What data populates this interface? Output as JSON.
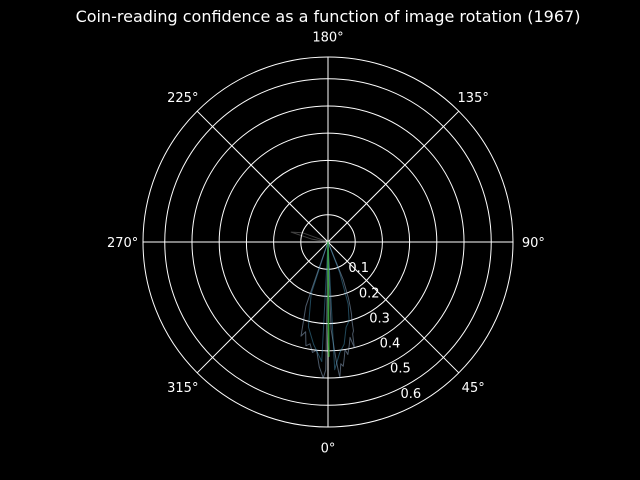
{
  "chart_data": {
    "type": "polar-line",
    "title": "Coin-reading confidence as a function of image rotation (1967)",
    "theta_zero_location": "S",
    "theta_direction": "counterclockwise",
    "angle_ticks": [
      "0°",
      "45°",
      "90°",
      "135°",
      "180°",
      "225°",
      "270°",
      "315°"
    ],
    "radial_ticks": [
      "0.1",
      "0.2",
      "0.3",
      "0.4",
      "0.5",
      "0.6"
    ],
    "rlim": [
      0,
      0.68
    ],
    "grid": true,
    "series": [
      {
        "color": "#a9c6e6",
        "opacity": 0.45,
        "points": [
          {
            "theta": 0,
            "r": 0.0
          },
          {
            "theta": 2,
            "r": 0.32
          },
          {
            "theta": 4,
            "r": 0.44
          },
          {
            "theta": 5,
            "r": 0.5
          },
          {
            "theta": 6,
            "r": 0.45
          },
          {
            "theta": 7,
            "r": 0.46
          },
          {
            "theta": 8,
            "r": 0.43
          },
          {
            "theta": 9,
            "r": 0.4
          },
          {
            "theta": 10,
            "r": 0.42
          },
          {
            "theta": 11,
            "r": 0.4
          },
          {
            "theta": 12,
            "r": 0.38
          },
          {
            "theta": 13,
            "r": 0.36
          },
          {
            "theta": 14,
            "r": 0.4
          },
          {
            "theta": 15,
            "r": 0.35
          },
          {
            "theta": 16,
            "r": 0.34
          },
          {
            "theta": 17,
            "r": 0.3
          },
          {
            "theta": 18,
            "r": 0.28
          },
          {
            "theta": 19,
            "r": 0.25
          },
          {
            "theta": 20,
            "r": 0.22
          },
          {
            "theta": 22,
            "r": 0.15
          },
          {
            "theta": 25,
            "r": 0.0
          },
          {
            "theta": 335,
            "r": 0.0
          },
          {
            "theta": 341,
            "r": 0.25
          },
          {
            "theta": 344,
            "r": 0.36
          },
          {
            "theta": 346,
            "r": 0.34
          },
          {
            "theta": 348,
            "r": 0.39
          },
          {
            "theta": 350,
            "r": 0.38
          },
          {
            "theta": 352,
            "r": 0.41
          },
          {
            "theta": 354,
            "r": 0.4
          },
          {
            "theta": 356,
            "r": 0.46
          },
          {
            "theta": 358,
            "r": 0.5
          },
          {
            "theta": 359,
            "r": 0.47
          },
          {
            "theta": 0,
            "r": 0.0
          }
        ]
      },
      {
        "color": "#4aa0c8",
        "opacity": 0.45,
        "points": [
          {
            "theta": 0,
            "r": 0.0
          },
          {
            "theta": 3,
            "r": 0.47
          },
          {
            "theta": 6,
            "r": 0.41
          },
          {
            "theta": 9,
            "r": 0.38
          },
          {
            "theta": 12,
            "r": 0.32
          },
          {
            "theta": 15,
            "r": 0.3
          },
          {
            "theta": 18,
            "r": 0.24
          },
          {
            "theta": 21,
            "r": 0.12
          },
          {
            "theta": 0,
            "r": 0.0
          },
          {
            "theta": 342,
            "r": 0.2
          },
          {
            "theta": 347,
            "r": 0.32
          },
          {
            "theta": 352,
            "r": 0.38
          },
          {
            "theta": 357,
            "r": 0.44
          },
          {
            "theta": 0,
            "r": 0.0
          }
        ]
      },
      {
        "color": "#2ca02c",
        "opacity": 0.9,
        "points": [
          {
            "theta": 0,
            "r": 0.0
          },
          {
            "theta": 0.5,
            "r": 0.42
          },
          {
            "theta": 0.2,
            "r": 0.3
          },
          {
            "theta": 0,
            "r": 0.0
          }
        ]
      },
      {
        "color": "#ffffff",
        "opacity": 0.25,
        "points": [
          {
            "theta": 245,
            "r": 0.0
          },
          {
            "theta": 250,
            "r": 0.1
          },
          {
            "theta": 255,
            "r": 0.14
          },
          {
            "theta": 260,
            "r": 0.06
          },
          {
            "theta": 245,
            "r": 0.0
          }
        ]
      }
    ]
  }
}
